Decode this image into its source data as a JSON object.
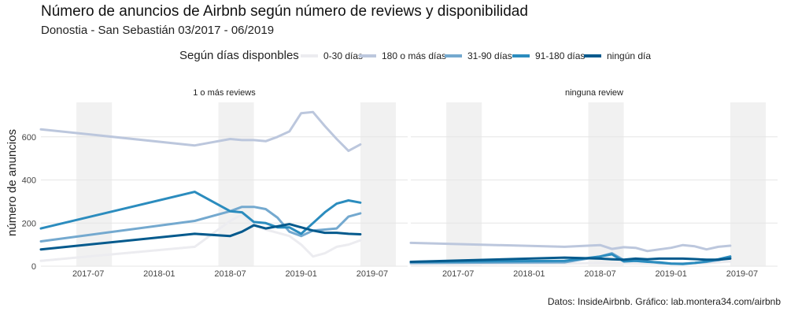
{
  "title": "Número de anuncios de Airbnb según número de reviews y disponibilidad",
  "subtitle": "Donostia - San Sebastián 03/2017 - 06/2019",
  "caption": "Datos: InsideAirbnb. Gráfico: lab.montera34.com/airbnb",
  "legend": {
    "title": "Según días disponbles",
    "items": [
      {
        "label": "0-30 días",
        "color": "#ececf0"
      },
      {
        "label": "180 o más días",
        "color": "#bcc7dd"
      },
      {
        "label": "31-90 días",
        "color": "#74a9cf"
      },
      {
        "label": "91-180 días",
        "color": "#2b8cbe"
      },
      {
        "label": "ningún día",
        "color": "#045a8d"
      }
    ]
  },
  "chart_data": {
    "type": "line",
    "ylabel": "número de anuncios",
    "xlabel": "",
    "ylim": [
      0,
      760
    ],
    "yticks": [
      0,
      200,
      400,
      600
    ],
    "xlim": [
      "2017-03",
      "2019-10"
    ],
    "xticks": [
      {
        "label": "2017-07",
        "date": "2017-07"
      },
      {
        "label": "2018-01",
        "date": "2018-01"
      },
      {
        "label": "2018-07",
        "date": "2018-07"
      },
      {
        "label": "2019-01",
        "date": "2019-01"
      },
      {
        "label": "2019-07",
        "date": "2019-07"
      }
    ],
    "shaded_periods": [
      [
        "2017-06",
        "2017-09"
      ],
      [
        "2018-06",
        "2018-09"
      ],
      [
        "2019-06",
        "2019-09"
      ]
    ],
    "grid": true,
    "legend_position": "top",
    "panels": [
      {
        "title": "1 o más reviews",
        "series": [
          {
            "name": "0-30 días",
            "color": "#ececf0",
            "x": [
              "2017-03",
              "2018-04",
              "2018-07",
              "2018-08",
              "2018-09",
              "2018-10",
              "2018-11",
              "2018-12",
              "2019-01",
              "2019-02",
              "2019-03",
              "2019-04",
              "2019-05",
              "2019-06"
            ],
            "y": [
              25,
              90,
              210,
              240,
              190,
              170,
              155,
              140,
              100,
              45,
              60,
              90,
              100,
              120
            ]
          },
          {
            "name": "180 o más días",
            "color": "#bcc7dd",
            "x": [
              "2017-03",
              "2018-04",
              "2018-07",
              "2018-08",
              "2018-09",
              "2018-10",
              "2018-11",
              "2018-12",
              "2019-01",
              "2019-02",
              "2019-03",
              "2019-04",
              "2019-05",
              "2019-06"
            ],
            "y": [
              635,
              560,
              590,
              585,
              585,
              580,
              600,
              625,
              710,
              715,
              650,
              590,
              535,
              565
            ]
          },
          {
            "name": "31-90 días",
            "color": "#74a9cf",
            "x": [
              "2017-03",
              "2018-04",
              "2018-07",
              "2018-08",
              "2018-09",
              "2018-10",
              "2018-11",
              "2018-12",
              "2019-01",
              "2019-02",
              "2019-03",
              "2019-04",
              "2019-05",
              "2019-06"
            ],
            "y": [
              115,
              210,
              255,
              275,
              275,
              265,
              225,
              160,
              140,
              165,
              170,
              175,
              230,
              245
            ]
          },
          {
            "name": "91-180 días",
            "color": "#2b8cbe",
            "x": [
              "2017-03",
              "2018-04",
              "2018-07",
              "2018-08",
              "2018-09",
              "2018-10",
              "2018-11",
              "2018-12",
              "2019-01",
              "2019-02",
              "2019-03",
              "2019-04",
              "2019-05",
              "2019-06"
            ],
            "y": [
              175,
              345,
              255,
              250,
              205,
              200,
              180,
              180,
              150,
              200,
              250,
              290,
              305,
              295
            ]
          },
          {
            "name": "ningún día",
            "color": "#045a8d",
            "x": [
              "2017-03",
              "2018-04",
              "2018-07",
              "2018-08",
              "2018-09",
              "2018-10",
              "2018-11",
              "2018-12",
              "2019-01",
              "2019-02",
              "2019-03",
              "2019-04",
              "2019-05",
              "2019-06"
            ],
            "y": [
              78,
              150,
              140,
              160,
              190,
              175,
              185,
              195,
              180,
              165,
              155,
              155,
              150,
              148
            ]
          }
        ]
      },
      {
        "title": "ninguna review",
        "series": [
          {
            "name": "0-30 días",
            "color": "#ececf0",
            "x": [
              "2017-03",
              "2018-04",
              "2018-07",
              "2018-08",
              "2018-09",
              "2018-10",
              "2018-11",
              "2018-12",
              "2019-01",
              "2019-02",
              "2019-03",
              "2019-04",
              "2019-05",
              "2019-06"
            ],
            "y": [
              8,
              12,
              15,
              14,
              13,
              12,
              12,
              11,
              10,
              10,
              12,
              14,
              18,
              22
            ]
          },
          {
            "name": "180 o más días",
            "color": "#bcc7dd",
            "x": [
              "2017-03",
              "2018-04",
              "2018-07",
              "2018-08",
              "2018-09",
              "2018-10",
              "2018-11",
              "2018-12",
              "2019-01",
              "2019-02",
              "2019-03",
              "2019-04",
              "2019-05",
              "2019-06"
            ],
            "y": [
              108,
              90,
              98,
              80,
              88,
              85,
              70,
              78,
              85,
              98,
              92,
              78,
              90,
              95
            ]
          },
          {
            "name": "31-90 días",
            "color": "#74a9cf",
            "x": [
              "2017-03",
              "2018-04",
              "2018-07",
              "2018-08",
              "2018-09",
              "2018-10",
              "2018-11",
              "2018-12",
              "2019-01",
              "2019-02",
              "2019-03",
              "2019-04",
              "2019-05",
              "2019-06"
            ],
            "y": [
              15,
              18,
              45,
              60,
              28,
              25,
              22,
              15,
              12,
              12,
              15,
              20,
              28,
              40
            ]
          },
          {
            "name": "91-180 días",
            "color": "#2b8cbe",
            "x": [
              "2017-03",
              "2018-04",
              "2018-07",
              "2018-08",
              "2018-09",
              "2018-10",
              "2018-11",
              "2018-12",
              "2019-01",
              "2019-02",
              "2019-03",
              "2019-04",
              "2019-05",
              "2019-06"
            ],
            "y": [
              20,
              25,
              45,
              55,
              22,
              25,
              20,
              18,
              12,
              10,
              15,
              22,
              32,
              45
            ]
          },
          {
            "name": "ningún día",
            "color": "#045a8d",
            "x": [
              "2017-03",
              "2018-04",
              "2018-07",
              "2018-08",
              "2018-09",
              "2018-10",
              "2018-11",
              "2018-12",
              "2019-01",
              "2019-02",
              "2019-03",
              "2019-04",
              "2019-05",
              "2019-06"
            ],
            "y": [
              20,
              40,
              35,
              32,
              30,
              35,
              32,
              35,
              35,
              35,
              33,
              30,
              30,
              35
            ]
          }
        ]
      }
    ]
  }
}
